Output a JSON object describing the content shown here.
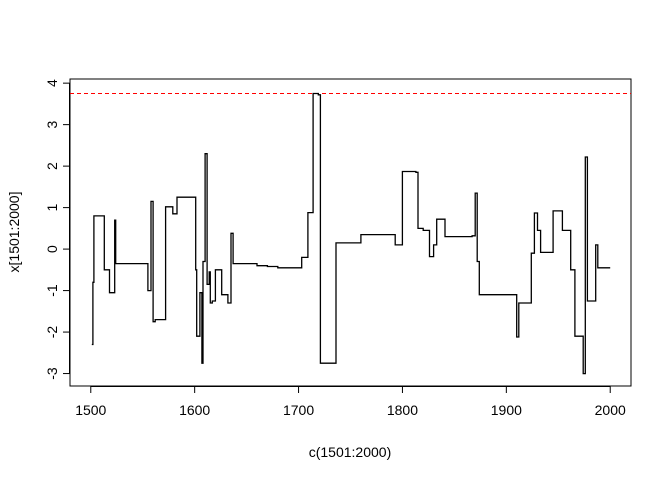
{
  "chart_data": {
    "type": "line",
    "line_style": "step",
    "xlabel": "c(1501:2000)",
    "ylabel": "x[1501:2000]",
    "xlim": [
      1480,
      2020
    ],
    "ylim": [
      -3.3,
      4.1
    ],
    "x_ticks": [
      1500,
      1600,
      1700,
      1800,
      1900,
      2000
    ],
    "y_ticks": [
      -3,
      -2,
      -1,
      0,
      1,
      2,
      3,
      4
    ],
    "x_tick_labels": [
      "1500",
      "1600",
      "1700",
      "1800",
      "1900",
      "2000"
    ],
    "y_tick_labels": [
      "-3",
      "-2",
      "-1",
      "0",
      "1",
      "2",
      "3",
      "4"
    ],
    "line_color": "#000000",
    "reference_line": {
      "y": 3.75,
      "color": "#ff0000",
      "style": "dashed"
    },
    "series": [
      {
        "x": [
          1501,
          1502,
          1503,
          1511,
          1513,
          1518,
          1523,
          1524,
          1525,
          1548,
          1555,
          1558,
          1560,
          1562,
          1572,
          1579,
          1583,
          1587,
          1601,
          1602,
          1605,
          1607,
          1608,
          1610,
          1612,
          1614,
          1615,
          1617,
          1620,
          1625,
          1626,
          1632,
          1635,
          1637,
          1640,
          1646,
          1660,
          1670,
          1680,
          1700,
          1703,
          1709,
          1714,
          1719,
          1721,
          1724,
          1726,
          1736,
          1740,
          1760,
          1770,
          1780,
          1793,
          1800,
          1813,
          1815,
          1820,
          1826,
          1830,
          1833,
          1841,
          1856,
          1867,
          1870,
          1872,
          1874,
          1876,
          1878,
          1882,
          1908,
          1910,
          1912,
          1920,
          1924,
          1927,
          1930,
          1933,
          1937,
          1945,
          1950,
          1954,
          1958,
          1962,
          1966,
          1968,
          1972,
          1974,
          1976,
          1978,
          1980,
          1984,
          1986,
          1988,
          1990,
          1992,
          2000
        ],
        "y": [
          -2.3,
          -0.8,
          0.8,
          0.8,
          -0.5,
          -1.05,
          0.7,
          -0.35,
          -0.35,
          -0.35,
          -1.0,
          1.15,
          -1.75,
          -1.7,
          1.02,
          0.85,
          1.25,
          1.25,
          -0.5,
          -2.1,
          -1.05,
          -2.75,
          -0.3,
          2.3,
          -0.85,
          -0.55,
          -1.3,
          -1.25,
          -0.5,
          -0.5,
          -1.1,
          -1.3,
          0.38,
          -0.35,
          -0.35,
          -0.35,
          -0.4,
          -0.42,
          -0.45,
          -0.45,
          -0.2,
          0.88,
          3.75,
          3.72,
          -2.75,
          -2.75,
          -2.75,
          0.15,
          0.15,
          0.35,
          0.35,
          0.35,
          0.1,
          1.87,
          1.85,
          0.5,
          0.45,
          -0.18,
          0.1,
          0.72,
          0.3,
          0.3,
          0.32,
          1.35,
          -0.3,
          -1.1,
          -1.1,
          -1.1,
          -1.1,
          -1.1,
          -2.12,
          -1.3,
          -1.3,
          -0.1,
          0.87,
          0.45,
          -0.08,
          -0.08,
          0.92,
          0.92,
          0.45,
          0.45,
          -0.5,
          -2.1,
          -2.1,
          -2.1,
          -3.0,
          2.22,
          -1.25,
          -1.25,
          -1.25,
          0.1,
          -0.45,
          -0.45,
          -0.45,
          -0.45
        ]
      }
    ]
  }
}
